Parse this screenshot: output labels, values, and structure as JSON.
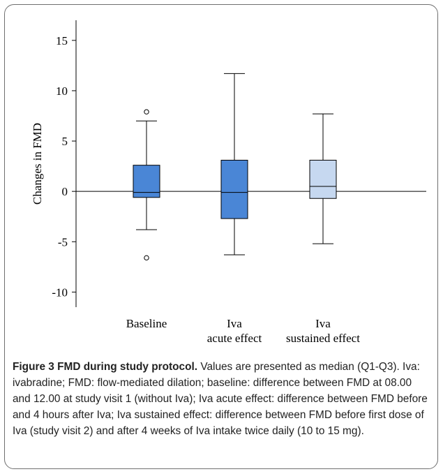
{
  "chart_data": {
    "type": "box",
    "ylabel": "Changes in FMD",
    "xlabel": "",
    "title": "",
    "ylim": [
      -11.5,
      17
    ],
    "yticks": [
      15,
      10,
      5,
      0,
      -5,
      -10
    ],
    "ytick_labels": [
      "15",
      "10",
      "5",
      "0",
      "-5",
      "-10"
    ],
    "reference_line_y": 0,
    "categories": [
      [
        "Baseline"
      ],
      [
        "Iva",
        "acute effect"
      ],
      [
        "Iva",
        "sustained effect"
      ]
    ],
    "boxes": [
      {
        "whisker_low": -3.8,
        "q1": -0.6,
        "median": -0.1,
        "q3": 2.6,
        "whisker_high": 7.0,
        "outliers": [
          7.9,
          -6.6
        ],
        "color": "#4a86d6"
      },
      {
        "whisker_low": -6.3,
        "q1": -2.7,
        "median": -0.1,
        "q3": 3.1,
        "whisker_high": 11.7,
        "outliers": [],
        "color": "#4a86d6"
      },
      {
        "whisker_low": -5.2,
        "q1": -0.7,
        "median": 0.5,
        "q3": 3.1,
        "whisker_high": 7.7,
        "outliers": [],
        "color": "#c6d8f0"
      }
    ]
  },
  "caption": {
    "title": "Figure 3 FMD during study protocol.",
    "body": " Values are presented as median (Q1-Q3). Iva: ivabradine; FMD: flow-mediated dilation; baseline: difference between FMD at 08.00 and 12.00 at study visit 1 (without Iva); Iva acute effect: difference between FMD before and 4 hours after Iva; Iva sustained effect: difference between FMD before first dose of Iva (study visit 2) and after 4 weeks of Iva intake twice daily (10 to 15 mg)."
  }
}
